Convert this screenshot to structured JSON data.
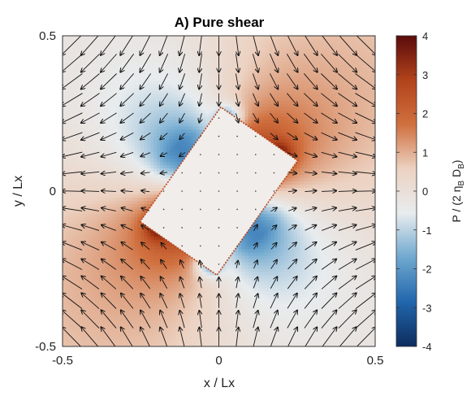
{
  "chart_data": {
    "type": "heatmap",
    "title": "A) Pure shear",
    "xlabel": "x / Lx",
    "ylabel": "y / Lx",
    "xlim": [
      -0.5,
      0.5
    ],
    "ylim": [
      -0.5,
      0.5
    ],
    "x_ticks": [
      "-0.5",
      "0",
      "0.5"
    ],
    "y_ticks": [
      "0.5",
      "0",
      "-0.5"
    ],
    "colorbar": {
      "label_main": "P / (2 η",
      "label_sub1": "B",
      "label_mid": " D",
      "label_sub2": "B",
      "label_end": ")",
      "range": [
        -4,
        4
      ],
      "ticks": [
        "4",
        "3",
        "2",
        "1",
        "0",
        "-1",
        "-2",
        "-3",
        "-4"
      ],
      "colormap": [
        "#0d2c5e",
        "#2166ac",
        "#6fa8cf",
        "#e8ecee",
        "#ecd2c2",
        "#d0703f",
        "#b2431b",
        "#5a0b0b"
      ]
    },
    "inclusion": {
      "shape": "rectangle",
      "center": [
        0.0,
        0.0
      ],
      "width": 0.3,
      "height": 0.45,
      "rotation_deg": -35,
      "fill_color": "#f1edea"
    },
    "background_pressure": 0.3,
    "max_pressure": 4,
    "flow_field": "pure shear: vx = x, vy = -y, perturbed around inclusion",
    "grid": false
  }
}
